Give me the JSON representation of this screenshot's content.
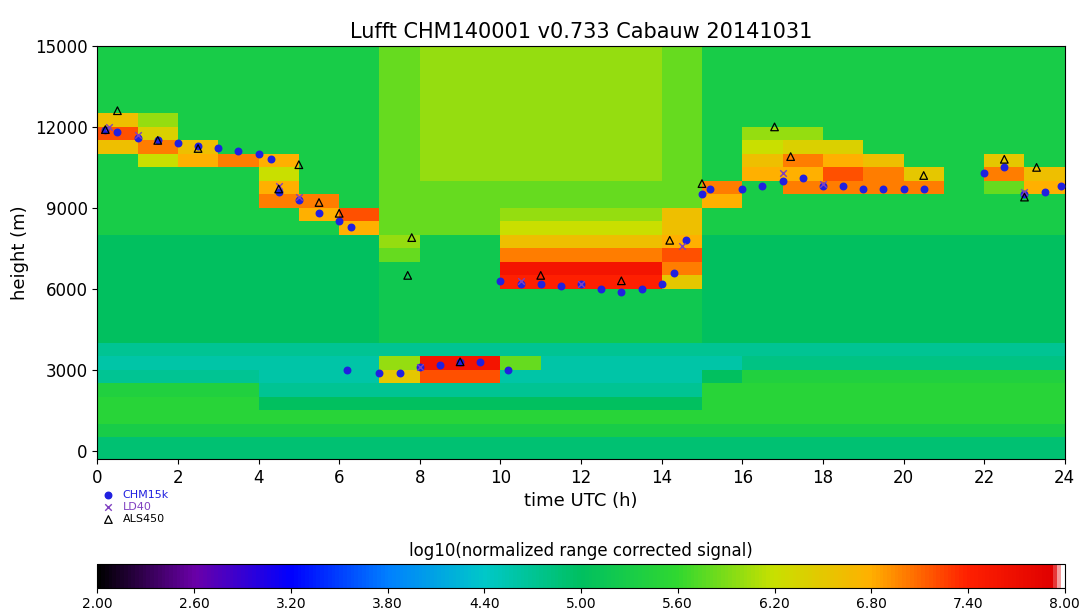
{
  "chart_data": {
    "type": "heatmap",
    "title": "Lufft CHM140001 v0.733 Cabauw 20141031",
    "x_label": "time UTC (h)",
    "y_label": "height (m)",
    "xlim": [
      0,
      24
    ],
    "xticks": [
      0,
      2,
      4,
      6,
      8,
      10,
      12,
      14,
      16,
      18,
      20,
      22,
      24
    ],
    "ylim": [
      -300,
      15000
    ],
    "yticks": [
      0,
      3000,
      6000,
      9000,
      12000,
      15000
    ],
    "x_bins": [
      0,
      1,
      2,
      3,
      4,
      5,
      6,
      7,
      8,
      9,
      10,
      11,
      12,
      13,
      14,
      15,
      16,
      17,
      18,
      19,
      20,
      21,
      22,
      23,
      24
    ],
    "y_bins": [
      -300,
      500,
      1000,
      1500,
      2000,
      2500,
      3000,
      3500,
      4000,
      4500,
      5000,
      5500,
      6000,
      6500,
      7000,
      7500,
      8000,
      8500,
      9000,
      9500,
      10000,
      10500,
      11000,
      11500,
      12000,
      12500,
      13000,
      13500,
      14000,
      14500,
      15000
    ],
    "cells": [
      [
        4.9,
        4.9,
        4.9,
        4.9,
        4.9,
        4.9,
        4.9,
        4.9,
        4.9,
        4.9,
        4.9,
        4.9,
        4.9,
        4.9,
        4.9,
        4.9,
        4.9,
        4.9,
        4.9,
        4.9,
        4.9,
        4.9,
        4.9,
        4.9
      ],
      [
        5.3,
        5.3,
        5.3,
        5.3,
        5.3,
        5.3,
        5.3,
        5.3,
        5.3,
        5.3,
        5.3,
        5.3,
        5.3,
        5.3,
        5.3,
        5.3,
        5.3,
        5.3,
        5.3,
        5.3,
        5.3,
        5.3,
        5.3,
        5.3
      ],
      [
        5.5,
        5.5,
        5.5,
        5.5,
        5.5,
        5.5,
        5.5,
        5.5,
        5.5,
        5.5,
        5.5,
        5.5,
        5.5,
        5.5,
        5.5,
        5.5,
        5.5,
        5.5,
        5.5,
        5.5,
        5.5,
        5.5,
        5.5,
        5.5
      ],
      [
        5.5,
        5.5,
        5.5,
        5.5,
        5.0,
        5.0,
        5.0,
        5.0,
        5.0,
        5.0,
        5.0,
        5.0,
        5.0,
        5.0,
        5.0,
        5.5,
        5.5,
        5.5,
        5.5,
        5.5,
        5.5,
        5.5,
        5.5,
        5.5
      ],
      [
        5.4,
        5.4,
        5.4,
        5.4,
        4.7,
        4.7,
        4.7,
        4.7,
        4.7,
        4.7,
        4.7,
        4.7,
        4.7,
        4.7,
        4.7,
        5.5,
        5.5,
        5.5,
        5.5,
        5.5,
        5.5,
        5.5,
        5.5,
        5.5
      ],
      [
        4.7,
        4.7,
        4.7,
        4.7,
        4.6,
        4.6,
        4.6,
        6.5,
        7.2,
        7.2,
        4.6,
        4.6,
        4.6,
        4.6,
        4.6,
        5.0,
        5.4,
        5.4,
        5.4,
        5.4,
        5.4,
        5.4,
        5.4,
        5.4
      ],
      [
        4.6,
        4.6,
        4.6,
        4.6,
        4.6,
        4.6,
        4.6,
        6.0,
        7.6,
        7.6,
        5.8,
        4.6,
        4.6,
        4.6,
        4.6,
        4.6,
        4.8,
        4.8,
        4.8,
        4.8,
        4.8,
        4.8,
        4.8,
        4.8
      ],
      [
        4.7,
        4.7,
        4.7,
        4.7,
        4.7,
        4.7,
        4.7,
        4.7,
        4.7,
        4.7,
        4.7,
        4.7,
        4.7,
        4.7,
        4.7,
        4.7,
        4.7,
        4.7,
        4.7,
        4.7,
        4.7,
        4.7,
        4.7,
        4.7
      ],
      [
        5.0,
        5.0,
        5.0,
        5.0,
        5.0,
        5.0,
        5.0,
        5.2,
        5.2,
        5.2,
        5.2,
        5.2,
        5.2,
        5.2,
        5.2,
        5.0,
        5.0,
        5.0,
        5.0,
        5.0,
        5.0,
        5.0,
        5.0,
        5.0
      ],
      [
        5.0,
        5.0,
        5.0,
        5.0,
        5.0,
        5.0,
        5.0,
        5.2,
        5.2,
        5.2,
        5.2,
        5.2,
        5.2,
        5.2,
        5.2,
        5.0,
        5.0,
        5.0,
        5.0,
        5.0,
        5.0,
        5.0,
        5.0,
        5.0
      ],
      [
        5.0,
        5.0,
        5.0,
        5.0,
        5.0,
        5.0,
        5.0,
        5.2,
        5.2,
        5.2,
        5.2,
        5.2,
        5.2,
        5.2,
        5.2,
        5.0,
        5.0,
        5.0,
        5.0,
        5.0,
        5.0,
        5.0,
        5.0,
        5.0
      ],
      [
        5.0,
        5.0,
        5.0,
        5.0,
        5.0,
        5.0,
        5.0,
        5.2,
        5.2,
        5.2,
        5.2,
        5.2,
        5.2,
        5.2,
        5.2,
        5.0,
        5.0,
        5.0,
        5.0,
        5.0,
        5.0,
        5.0,
        5.0,
        5.0
      ],
      [
        5.0,
        5.0,
        5.0,
        5.0,
        5.0,
        5.0,
        5.0,
        5.2,
        5.2,
        5.2,
        7.4,
        7.4,
        7.4,
        7.4,
        6.5,
        5.0,
        5.0,
        5.0,
        5.0,
        5.0,
        5.0,
        5.0,
        5.0,
        5.0
      ],
      [
        5.0,
        5.0,
        5.0,
        5.0,
        5.0,
        5.0,
        5.0,
        5.2,
        5.2,
        5.2,
        7.6,
        7.6,
        7.6,
        7.6,
        7.0,
        5.0,
        5.0,
        5.0,
        5.0,
        5.0,
        5.0,
        5.0,
        5.0,
        5.0
      ],
      [
        5.0,
        5.0,
        5.0,
        5.0,
        5.0,
        5.0,
        5.0,
        5.8,
        5.2,
        5.2,
        7.0,
        7.0,
        7.0,
        7.0,
        7.2,
        5.0,
        5.0,
        5.0,
        5.0,
        5.0,
        5.0,
        5.0,
        5.0,
        5.0
      ],
      [
        5.0,
        5.0,
        5.0,
        5.0,
        5.0,
        5.0,
        5.0,
        6.0,
        5.2,
        5.2,
        6.6,
        6.6,
        6.6,
        6.6,
        6.8,
        5.0,
        5.0,
        5.0,
        5.0,
        5.0,
        5.0,
        5.0,
        5.0,
        5.0
      ],
      [
        5.3,
        5.3,
        5.3,
        5.3,
        5.3,
        5.3,
        6.8,
        5.8,
        5.8,
        5.8,
        6.2,
        6.2,
        6.2,
        6.2,
        6.6,
        5.3,
        5.3,
        5.3,
        5.3,
        5.3,
        5.3,
        5.3,
        5.3,
        5.3
      ],
      [
        5.3,
        5.3,
        5.3,
        5.3,
        5.3,
        6.8,
        7.2,
        5.8,
        5.8,
        5.8,
        6.0,
        6.0,
        6.0,
        6.0,
        6.6,
        5.3,
        5.3,
        5.3,
        5.3,
        5.3,
        5.3,
        5.3,
        5.3,
        5.3
      ],
      [
        5.3,
        5.3,
        5.3,
        5.3,
        7.0,
        7.0,
        5.3,
        5.8,
        5.8,
        5.8,
        5.8,
        5.8,
        5.8,
        5.8,
        5.8,
        6.8,
        5.3,
        5.3,
        5.3,
        5.3,
        5.3,
        5.3,
        5.3,
        5.3
      ],
      [
        5.3,
        5.3,
        5.3,
        5.3,
        6.8,
        5.3,
        5.3,
        5.8,
        5.8,
        5.8,
        5.8,
        5.8,
        5.8,
        5.8,
        5.8,
        7.0,
        5.3,
        7.0,
        7.0,
        7.0,
        7.0,
        5.3,
        5.8,
        6.8
      ],
      [
        5.3,
        5.3,
        5.3,
        5.3,
        6.2,
        5.3,
        5.3,
        5.8,
        6.0,
        6.0,
        6.0,
        6.0,
        6.0,
        6.0,
        5.8,
        5.3,
        6.8,
        6.8,
        7.2,
        7.0,
        6.5,
        5.3,
        7.0,
        6.6
      ],
      [
        5.3,
        6.2,
        6.8,
        7.0,
        6.8,
        5.3,
        5.3,
        5.8,
        6.0,
        6.0,
        6.0,
        6.0,
        6.0,
        6.0,
        5.8,
        5.3,
        6.6,
        7.0,
        6.8,
        6.6,
        5.3,
        5.3,
        6.5,
        5.3
      ],
      [
        6.6,
        7.0,
        6.6,
        5.3,
        5.3,
        5.3,
        5.3,
        5.8,
        6.0,
        6.0,
        6.0,
        6.0,
        6.0,
        6.0,
        5.8,
        5.3,
        6.2,
        6.4,
        6.4,
        5.3,
        5.3,
        5.3,
        5.3,
        5.3
      ],
      [
        7.2,
        6.4,
        5.3,
        5.3,
        5.3,
        5.3,
        5.3,
        5.8,
        6.0,
        6.0,
        6.0,
        6.0,
        6.0,
        6.0,
        5.8,
        5.3,
        6.0,
        6.0,
        5.3,
        5.3,
        5.3,
        5.3,
        5.3,
        5.3
      ],
      [
        6.6,
        6.0,
        5.3,
        5.3,
        5.3,
        5.3,
        5.3,
        5.8,
        6.0,
        6.0,
        6.0,
        6.0,
        6.0,
        6.0,
        5.8,
        5.3,
        5.3,
        5.3,
        5.3,
        5.3,
        5.3,
        5.3,
        5.3,
        5.3
      ],
      [
        5.3,
        5.3,
        5.3,
        5.3,
        5.3,
        5.3,
        5.3,
        5.8,
        6.0,
        6.0,
        6.0,
        6.0,
        6.0,
        6.0,
        5.8,
        5.3,
        5.3,
        5.3,
        5.3,
        5.3,
        5.3,
        5.3,
        5.3,
        5.3
      ],
      [
        5.3,
        5.3,
        5.3,
        5.3,
        5.3,
        5.3,
        5.3,
        5.8,
        6.0,
        6.0,
        6.0,
        6.0,
        6.0,
        6.0,
        5.8,
        5.3,
        5.3,
        5.3,
        5.3,
        5.3,
        5.3,
        5.3,
        5.3,
        5.3
      ],
      [
        5.3,
        5.3,
        5.3,
        5.3,
        5.3,
        5.3,
        5.3,
        5.8,
        6.0,
        6.0,
        6.0,
        6.0,
        6.0,
        6.0,
        5.8,
        5.3,
        5.3,
        5.3,
        5.3,
        5.3,
        5.3,
        5.3,
        5.3,
        5.3
      ],
      [
        5.3,
        5.3,
        5.3,
        5.3,
        5.3,
        5.3,
        5.3,
        5.8,
        6.0,
        6.0,
        6.0,
        6.0,
        6.0,
        6.0,
        5.8,
        5.3,
        5.3,
        5.3,
        5.3,
        5.3,
        5.3,
        5.3,
        5.3,
        5.3
      ],
      [
        5.3,
        5.3,
        5.3,
        5.3,
        5.3,
        5.3,
        5.3,
        5.8,
        6.0,
        6.0,
        6.0,
        6.0,
        6.0,
        6.0,
        5.8,
        5.3,
        5.3,
        5.3,
        5.3,
        5.3,
        5.3,
        5.3,
        5.3,
        5.3
      ]
    ],
    "colorbar": {
      "label": "log10(normalized range corrected signal)",
      "range": [
        2,
        8
      ],
      "ticks": [
        {
          "value": 2.0,
          "label": "2.00"
        },
        {
          "value": 2.6,
          "label": "2.60"
        },
        {
          "value": 3.2,
          "label": "3.20"
        },
        {
          "value": 3.8,
          "label": "3.80"
        },
        {
          "value": 4.4,
          "label": "4.40"
        },
        {
          "value": 5.0,
          "label": "5.00"
        },
        {
          "value": 5.6,
          "label": "5.60"
        },
        {
          "value": 6.2,
          "label": "6.20"
        },
        {
          "value": 6.8,
          "label": "6.80"
        },
        {
          "value": 7.4,
          "label": "7.40"
        },
        {
          "value": 8.0,
          "label": "8.00"
        }
      ]
    },
    "legend": "upper left",
    "series": [
      {
        "name": "CHM15k",
        "type": "scatter",
        "color": "#2020e0",
        "marker": "circle",
        "x": [
          0.2,
          0.5,
          1,
          1.5,
          2,
          2.5,
          3,
          3.5,
          4,
          4.3,
          4.5,
          5,
          5.5,
          6,
          6.3,
          6.2,
          7,
          7.5,
          8,
          8.5,
          9,
          9.5,
          10.2,
          10,
          10.5,
          11,
          11.5,
          12,
          12.5,
          13,
          13.5,
          14,
          14.3,
          14.6,
          15,
          15.2,
          16,
          16.5,
          17,
          17.5,
          18,
          18.5,
          19,
          19.5,
          20,
          20.5,
          22,
          22.5,
          23,
          23.5,
          23.9
        ],
        "values": [
          11900,
          11800,
          11600,
          11500,
          11400,
          11300,
          11200,
          11100,
          11000,
          10800,
          9600,
          9300,
          8800,
          8500,
          8300,
          3000,
          2900,
          2900,
          3100,
          3200,
          3300,
          3300,
          3000,
          6300,
          6200,
          6200,
          6100,
          6200,
          6000,
          5900,
          6000,
          6200,
          6600,
          7800,
          9500,
          9700,
          9700,
          9800,
          10000,
          10100,
          9800,
          9800,
          9700,
          9700,
          9700,
          9700,
          10300,
          10500,
          9500,
          9600,
          9800
        ]
      },
      {
        "name": "LD40",
        "type": "scatter",
        "color": "#8040c0",
        "marker": "x",
        "x": [
          0.3,
          1,
          4.5,
          5,
          8,
          10.5,
          12,
          14.5,
          17,
          18,
          23
        ],
        "values": [
          12000,
          11700,
          9800,
          9400,
          3100,
          6300,
          6200,
          7600,
          10300,
          9900,
          9600
        ]
      },
      {
        "name": "ALS450",
        "type": "scatter",
        "color": "#000000",
        "marker": "triangle",
        "x": [
          0.2,
          0.5,
          1.5,
          2.5,
          4.5,
          5,
          5.5,
          6,
          7.8,
          7.7,
          9,
          11,
          13,
          14.2,
          15,
          16.8,
          17.2,
          20.5,
          22.5,
          23,
          23.3
        ],
        "values": [
          11900,
          12600,
          11500,
          11200,
          9700,
          10600,
          9200,
          8800,
          7900,
          6500,
          3300,
          6500,
          6300,
          7800,
          9900,
          12000,
          10900,
          10200,
          10800,
          9400,
          10500
        ]
      }
    ]
  }
}
